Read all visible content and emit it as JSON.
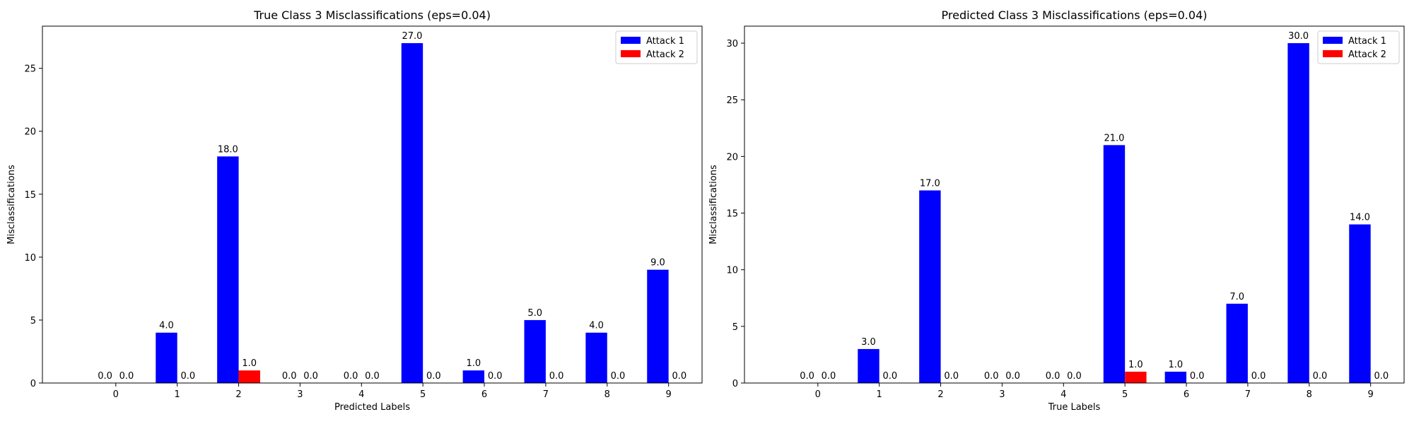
{
  "colors": {
    "series1": "#0000ff",
    "series2": "#ff0000"
  },
  "chart_data": [
    {
      "type": "bar",
      "title": "True Class 3 Misclassifications (eps=0.04)",
      "xlabel": "Predicted Labels",
      "ylabel": "Misclassifications",
      "categories": [
        "0",
        "1",
        "2",
        "3",
        "4",
        "5",
        "6",
        "7",
        "8",
        "9"
      ],
      "ylim": [
        0,
        28.35
      ],
      "yticks": [
        "0",
        "5",
        "10",
        "15",
        "20",
        "25"
      ],
      "legend": "top-right",
      "series": [
        {
          "name": "Attack 1",
          "values": [
            0,
            4,
            18,
            0,
            0,
            27,
            1,
            5,
            4,
            9
          ],
          "labels": [
            "0.0",
            "4.0",
            "18.0",
            "0.0",
            "0.0",
            "27.0",
            "1.0",
            "5.0",
            "4.0",
            "9.0"
          ]
        },
        {
          "name": "Attack 2",
          "values": [
            0,
            0,
            1,
            0,
            0,
            0,
            0,
            0,
            0,
            0
          ],
          "labels": [
            "0.0",
            "0.0",
            "1.0",
            "0.0",
            "0.0",
            "0.0",
            "0.0",
            "0.0",
            "0.0",
            "0.0"
          ]
        }
      ]
    },
    {
      "type": "bar",
      "title": "Predicted Class 3 Misclassifications (eps=0.04)",
      "xlabel": "True Labels",
      "ylabel": "Misclassifications",
      "categories": [
        "0",
        "1",
        "2",
        "3",
        "4",
        "5",
        "6",
        "7",
        "8",
        "9"
      ],
      "ylim": [
        0,
        31.5
      ],
      "yticks": [
        "0",
        "5",
        "10",
        "15",
        "20",
        "25",
        "30"
      ],
      "legend": "top-right",
      "series": [
        {
          "name": "Attack 1",
          "values": [
            0,
            3,
            17,
            0,
            0,
            21,
            1,
            7,
            30,
            14
          ],
          "labels": [
            "0.0",
            "3.0",
            "17.0",
            "0.0",
            "0.0",
            "21.0",
            "1.0",
            "7.0",
            "30.0",
            "14.0"
          ]
        },
        {
          "name": "Attack 2",
          "values": [
            0,
            0,
            0,
            0,
            0,
            1,
            0,
            0,
            0,
            0
          ],
          "labels": [
            "0.0",
            "0.0",
            "0.0",
            "0.0",
            "0.0",
            "1.0",
            "0.0",
            "0.0",
            "0.0",
            "0.0"
          ]
        }
      ]
    }
  ]
}
